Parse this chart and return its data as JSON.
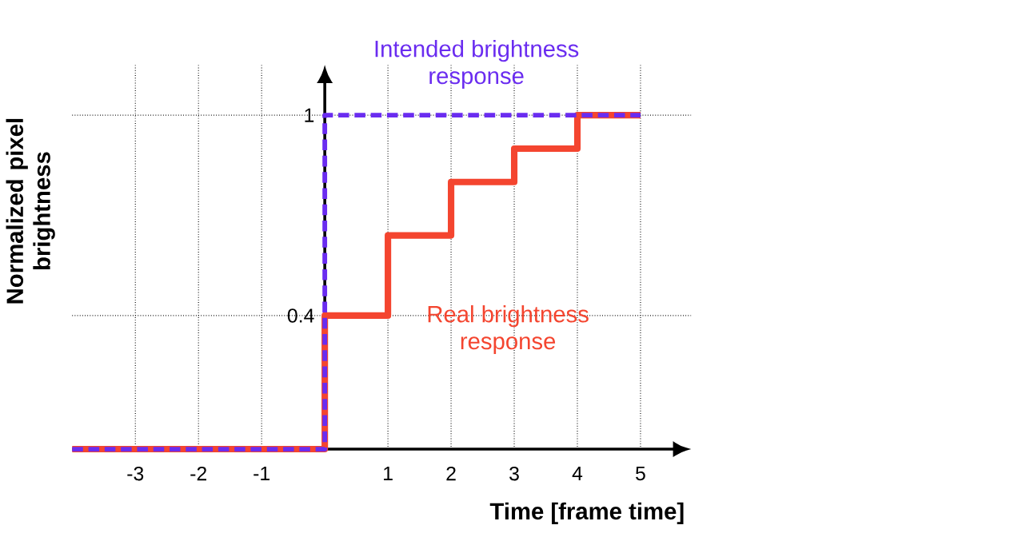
{
  "chart_data": {
    "type": "step",
    "xlabel": "Time [frame time]",
    "ylabel": "Normalized pixel brightness",
    "xlim": [
      -4,
      5.8
    ],
    "ylim": [
      0,
      1.15
    ],
    "xticks": [
      -3,
      -2,
      -1,
      1,
      2,
      3,
      4,
      5
    ],
    "yticks": [
      0.4,
      1
    ],
    "grid": true,
    "legend": false,
    "series": [
      {
        "name": "Real brightness response",
        "color": "#f4452f",
        "x": [
          -4,
          0,
          1,
          2,
          3,
          4,
          5
        ],
        "values": [
          0,
          0.4,
          0.64,
          0.8,
          0.9,
          1,
          1
        ],
        "line_style": "solid"
      },
      {
        "name": "Intended brightness response",
        "color": "#6a2cf0",
        "x": [
          -4,
          0,
          5
        ],
        "values": [
          0,
          1,
          1
        ],
        "line_style": "dashed"
      }
    ]
  }
}
